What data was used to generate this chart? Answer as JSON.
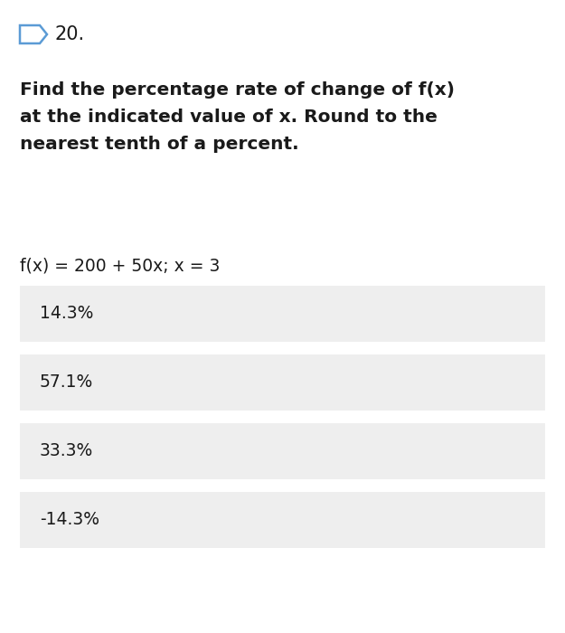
{
  "problem_number": "20.",
  "question_line1": "Find the percentage rate of change of f(x)",
  "question_line2": "at the indicated value of x. Round to the",
  "question_line3": "nearest tenth of a percent.",
  "formula": "f(x) = 200 + 50x; x = 3",
  "options": [
    "14.3%",
    "57.1%",
    "33.3%",
    "-14.3%"
  ],
  "bg_color": "#ffffff",
  "option_bg_color": "#eeeeee",
  "text_color": "#1a1a1a",
  "option_font_size": 13.5,
  "question_font_size": 14.5,
  "formula_font_size": 13.5,
  "number_font_size": 15,
  "arrow_color": "#5b9bd5",
  "fig_width": 6.25,
  "fig_height": 7.0,
  "dpi": 100
}
